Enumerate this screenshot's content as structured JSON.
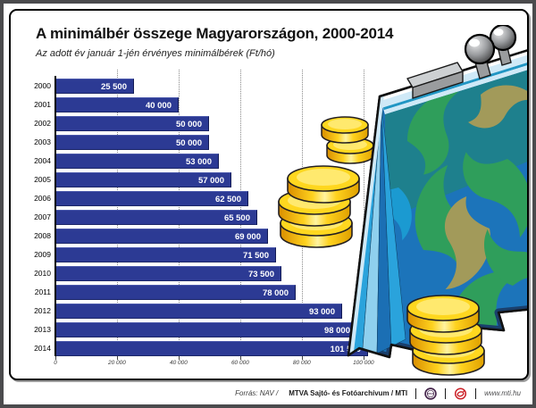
{
  "chart_data": {
    "type": "bar",
    "orientation": "horizontal",
    "title": "A minimálbér összege Magyarországon, 2000-2014",
    "subtitle": "Az adott év január 1-jén érvényes minimálbérek (Ft/hó)",
    "unit": "Ft/hó",
    "categories": [
      "2000",
      "2001",
      "2002",
      "2003",
      "2004",
      "2005",
      "2006",
      "2007",
      "2008",
      "2009",
      "2010",
      "2011",
      "2012",
      "2013",
      "2014"
    ],
    "values": [
      25500,
      40000,
      50000,
      50000,
      53000,
      57000,
      62500,
      65500,
      69000,
      71500,
      73500,
      78000,
      93000,
      98000,
      101500
    ],
    "value_labels": [
      "25 500",
      "40 000",
      "50 000",
      "50 000",
      "53 000",
      "57 000",
      "62 500",
      "65 500",
      "69 000",
      "71 500",
      "73 500",
      "78 000",
      "93 000",
      "98 000",
      "101 500"
    ],
    "xlim": [
      0,
      101500
    ],
    "x_ticks": [
      {
        "value": 0,
        "label": "0"
      },
      {
        "value": 20000,
        "label": "20 000"
      },
      {
        "value": 40000,
        "label": "40 000"
      },
      {
        "value": 60000,
        "label": "60 000"
      },
      {
        "value": 80000,
        "label": "80 000"
      },
      {
        "value": 100000,
        "label": "100 000"
      }
    ],
    "grid": "vertical-dotted",
    "grid_color": "#8a8a8a",
    "bar_color": "#2c3a94",
    "legend": "none"
  },
  "footer": {
    "source_regular": "Forrás: NAV /",
    "source_bold": "MTVA Sajtó- és Fotóarchívum / MTI",
    "website": "www.mti.hu",
    "logos": [
      {
        "name": "mtva-logo",
        "label": "MTVA"
      },
      {
        "name": "mti-logo",
        "label": "MTI"
      }
    ]
  },
  "illustration": {
    "description": "kiss-lock coin purse with floral pattern and three stacks of gold coins",
    "colors": {
      "coin_gold": "#FFD71F",
      "coin_rim": "#FFE96E",
      "coin_edge": "#231F20",
      "purse_blue": "#1C74BA",
      "purse_teal": "#1E808D",
      "leaf_green": "#2F9E5B",
      "leaf_olive": "#A29A5A",
      "leaf_blue": "#1B9AD1",
      "frame_light": "#CFE9F7",
      "frame_blue": "#2196C4",
      "pleat_light": "#8FD0EE",
      "pleat_mid": "#2AA3DC",
      "pleat_dark": "#1B6FB4",
      "navy_edge": "#1A3F6C",
      "clasp_gray": "#9A9C9E",
      "clasp_light": "#CDD0D2"
    }
  }
}
